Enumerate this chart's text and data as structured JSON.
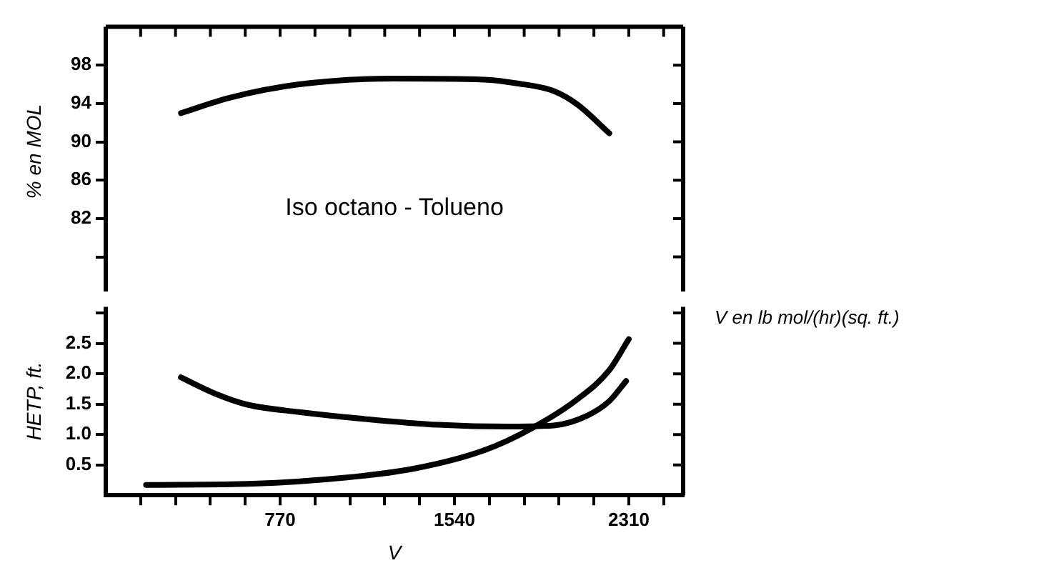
{
  "chart_data": [
    {
      "type": "line",
      "ylabel": "% en MOL",
      "annotations": [
        "Iso octano - Tolueno"
      ],
      "series": [
        {
          "color": "#000000",
          "x": [
            332,
            547,
            854,
            1266,
            1671,
            1818,
            1979,
            2083,
            2224
          ],
          "values": [
            93.0,
            94.6,
            96.0,
            96.6,
            96.5,
            96.1,
            95.3,
            93.9,
            90.9
          ]
        }
      ],
      "xlim": [
        0,
        2550
      ],
      "xticks": [
        {
          "value": 154,
          "label": null
        },
        {
          "value": 308,
          "label": null
        },
        {
          "value": 462,
          "label": null
        },
        {
          "value": 616,
          "label": null
        },
        {
          "value": 770,
          "label": null
        },
        {
          "value": 924,
          "label": null
        },
        {
          "value": 1078,
          "label": null
        },
        {
          "value": 1232,
          "label": null
        },
        {
          "value": 1386,
          "label": null
        },
        {
          "value": 1540,
          "label": null
        },
        {
          "value": 1694,
          "label": null
        },
        {
          "value": 1848,
          "label": null
        },
        {
          "value": 2002,
          "label": null
        },
        {
          "value": 2156,
          "label": null
        },
        {
          "value": 2310,
          "label": null
        },
        {
          "value": 2464,
          "label": null
        }
      ],
      "ylim": [
        76,
        102
      ],
      "yticks": [
        {
          "value": 78,
          "label": null
        },
        82,
        86,
        90,
        94,
        98
      ],
      "tick_labels": "y",
      "grid": false,
      "legend": false,
      "marker": "none",
      "line_style": "solid"
    },
    {
      "type": "line",
      "xlabel": "V",
      "ylabel": "HETP, ft.",
      "annotations": [
        "V en lb mol/(hr)(sq. ft.)"
      ],
      "series": [
        {
          "color": "#000000",
          "x": [
            332,
            485,
            627,
            854,
            1161,
            1468,
            1776,
            1979,
            2126,
            2224,
            2298
          ],
          "values": [
            1.94,
            1.67,
            1.49,
            1.37,
            1.25,
            1.16,
            1.13,
            1.15,
            1.31,
            1.55,
            1.88
          ]
        },
        {
          "color": "#000000",
          "x": [
            178,
            651,
            1057,
            1364,
            1671,
            1880,
            2083,
            2224,
            2310
          ],
          "values": [
            0.17,
            0.19,
            0.29,
            0.44,
            0.74,
            1.1,
            1.58,
            2.06,
            2.57
          ]
        }
      ],
      "xlim": [
        0,
        2550
      ],
      "xticks": [
        {
          "value": 154,
          "label": null
        },
        {
          "value": 308,
          "label": null
        },
        {
          "value": 462,
          "label": null
        },
        {
          "value": 616,
          "label": null
        },
        770,
        {
          "value": 924,
          "label": null
        },
        {
          "value": 1078,
          "label": null
        },
        {
          "value": 1232,
          "label": null
        },
        {
          "value": 1386,
          "label": null
        },
        1540,
        {
          "value": 1694,
          "label": null
        },
        {
          "value": 1848,
          "label": null
        },
        {
          "value": 2002,
          "label": null
        },
        {
          "value": 2156,
          "label": null
        },
        2310,
        {
          "value": 2464,
          "label": null
        }
      ],
      "ylim": [
        0,
        3.1
      ],
      "yticks": [
        {
          "value": 0.5,
          "label": "0.5"
        },
        {
          "value": 1,
          "label": "1.0"
        },
        {
          "value": 1.5,
          "label": "1.5"
        },
        {
          "value": 2,
          "label": "2.0"
        },
        {
          "value": 2.5,
          "label": "2.5"
        },
        {
          "value": 3,
          "label": null
        }
      ],
      "grid": false,
      "legend": false,
      "marker": "none",
      "line_style": "solid"
    }
  ]
}
